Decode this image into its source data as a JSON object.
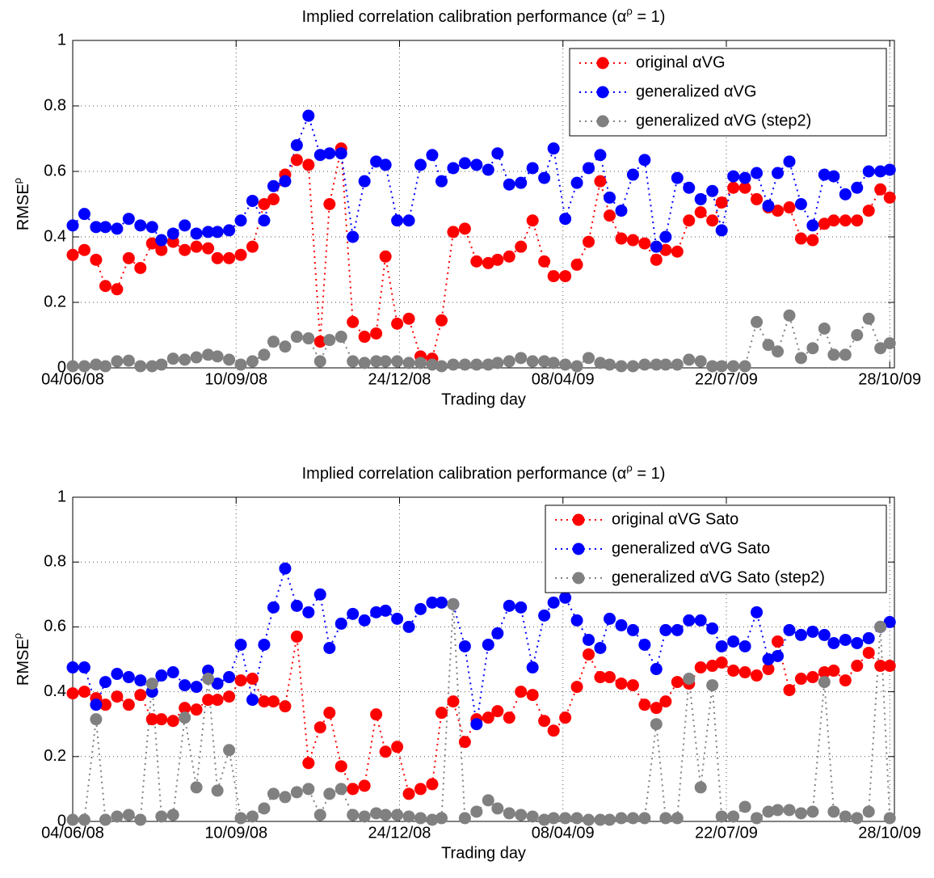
{
  "chart_data": [
    {
      "type": "line",
      "title": [
        "Implied correlation calibration performance (α",
        "ρ",
        " = 1)"
      ],
      "xlabel": "Trading day",
      "ylabel": [
        "RMSE",
        "ρ"
      ],
      "xlim": [
        0,
        352
      ],
      "ylim": [
        0,
        1
      ],
      "xticks": [
        {
          "value": 0,
          "label": "04/06/08"
        },
        {
          "value": 70,
          "label": "10/09/08"
        },
        {
          "value": 140,
          "label": "24/12/08"
        },
        {
          "value": 210,
          "label": "08/04/09"
        },
        {
          "value": 280,
          "label": "22/07/09"
        },
        {
          "value": 350,
          "label": "28/10/09"
        }
      ],
      "yticks": [
        0,
        0.2,
        0.4,
        0.6,
        0.8,
        1
      ],
      "grid": true,
      "legend": "upper right",
      "x": [
        0,
        5,
        10,
        14,
        19,
        24,
        29,
        34,
        38,
        43,
        48,
        53,
        58,
        62,
        67,
        72,
        77,
        82,
        86,
        91,
        96,
        101,
        106,
        110,
        115,
        120,
        125,
        130,
        134,
        139,
        144,
        149,
        154,
        158,
        163,
        168,
        173,
        178,
        182,
        187,
        192,
        197,
        202,
        206,
        211,
        216,
        221,
        226,
        230,
        235,
        240,
        245,
        250,
        254,
        259,
        264,
        269,
        274,
        278,
        283,
        288,
        293,
        298,
        302,
        307,
        312,
        317,
        322,
        326,
        331,
        336,
        341,
        346,
        350
      ],
      "series": [
        {
          "name": "original αVG",
          "color": "#ff0000",
          "values": [
            0.345,
            0.36,
            0.33,
            0.25,
            0.24,
            0.335,
            0.305,
            0.38,
            0.36,
            0.385,
            0.36,
            0.37,
            0.365,
            0.335,
            0.335,
            0.345,
            0.37,
            0.5,
            0.515,
            0.59,
            0.635,
            0.62,
            0.08,
            0.5,
            0.67,
            0.14,
            0.095,
            0.105,
            0.34,
            0.135,
            0.15,
            0.035,
            0.028,
            0.145,
            0.415,
            0.425,
            0.325,
            0.32,
            0.33,
            0.34,
            0.37,
            0.45,
            0.325,
            0.28,
            0.28,
            0.315,
            0.385,
            0.57,
            0.465,
            0.395,
            0.39,
            0.38,
            0.33,
            0.36,
            0.355,
            0.45,
            0.475,
            0.45,
            0.505,
            0.55,
            0.55,
            0.515,
            0.49,
            0.48,
            0.49,
            0.395,
            0.39,
            0.44,
            0.45,
            0.45,
            0.45,
            0.48,
            0.545,
            0.52
          ]
        },
        {
          "name": "generalized αVG",
          "color": "#0000ff",
          "values": [
            0.435,
            0.47,
            0.43,
            0.43,
            0.425,
            0.455,
            0.435,
            0.43,
            0.39,
            0.41,
            0.435,
            0.41,
            0.415,
            0.415,
            0.42,
            0.45,
            0.51,
            0.45,
            0.555,
            0.57,
            0.68,
            0.77,
            0.65,
            0.655,
            0.655,
            0.4,
            0.57,
            0.63,
            0.62,
            0.45,
            0.45,
            0.62,
            0.65,
            0.57,
            0.61,
            0.625,
            0.62,
            0.605,
            0.655,
            0.56,
            0.565,
            0.61,
            0.58,
            0.67,
            0.455,
            0.565,
            0.61,
            0.65,
            0.52,
            0.48,
            0.59,
            0.635,
            0.37,
            0.4,
            0.58,
            0.55,
            0.515,
            0.54,
            0.42,
            0.585,
            0.58,
            0.595,
            0.495,
            0.595,
            0.63,
            0.5,
            0.435,
            0.59,
            0.585,
            0.53,
            0.55,
            0.6,
            0.6,
            0.605
          ]
        },
        {
          "name": "generalized αVG (step2)",
          "color": "#808080",
          "values": [
            0.005,
            0.005,
            0.01,
            0.005,
            0.02,
            0.022,
            0.005,
            0.005,
            0.01,
            0.028,
            0.025,
            0.032,
            0.04,
            0.035,
            0.025,
            0.01,
            0.02,
            0.04,
            0.08,
            0.065,
            0.095,
            0.09,
            0.02,
            0.085,
            0.095,
            0.02,
            0.015,
            0.02,
            0.02,
            0.02,
            0.015,
            0.015,
            0.01,
            0.005,
            0.01,
            0.01,
            0.01,
            0.01,
            0.015,
            0.02,
            0.03,
            0.02,
            0.02,
            0.015,
            0.01,
            0.005,
            0.03,
            0.015,
            0.01,
            0.005,
            0.005,
            0.01,
            0.01,
            0.01,
            0.01,
            0.025,
            0.02,
            0.005,
            0.005,
            0.005,
            0.005,
            0.14,
            0.07,
            0.05,
            0.16,
            0.03,
            0.06,
            0.12,
            0.04,
            0.04,
            0.1,
            0.15,
            0.06,
            0.075
          ]
        }
      ]
    },
    {
      "type": "line",
      "title": [
        "Implied correlation calibration performance (α",
        "ρ",
        " = 1)"
      ],
      "xlabel": "Trading day",
      "ylabel": [
        "RMSE",
        "ρ"
      ],
      "xlim": [
        0,
        352
      ],
      "ylim": [
        0,
        1
      ],
      "xticks": [
        {
          "value": 0,
          "label": "04/06/08"
        },
        {
          "value": 70,
          "label": "10/09/08"
        },
        {
          "value": 140,
          "label": "24/12/08"
        },
        {
          "value": 210,
          "label": "08/04/09"
        },
        {
          "value": 280,
          "label": "22/07/09"
        },
        {
          "value": 350,
          "label": "28/10/09"
        }
      ],
      "yticks": [
        0,
        0.2,
        0.4,
        0.6,
        0.8,
        1
      ],
      "grid": true,
      "legend": "upper right",
      "x": [
        0,
        5,
        10,
        14,
        19,
        24,
        29,
        34,
        38,
        43,
        48,
        53,
        58,
        62,
        67,
        72,
        77,
        82,
        86,
        91,
        96,
        101,
        106,
        110,
        115,
        120,
        125,
        130,
        134,
        139,
        144,
        149,
        154,
        158,
        163,
        168,
        173,
        178,
        182,
        187,
        192,
        197,
        202,
        206,
        211,
        216,
        221,
        226,
        230,
        235,
        240,
        245,
        250,
        254,
        259,
        264,
        269,
        274,
        278,
        283,
        288,
        293,
        298,
        302,
        307,
        312,
        317,
        322,
        326,
        331,
        336,
        341,
        346,
        350
      ],
      "series": [
        {
          "name": "original αVG Sato",
          "color": "#ff0000",
          "values": [
            0.395,
            0.4,
            0.38,
            0.36,
            0.385,
            0.36,
            0.39,
            0.315,
            0.315,
            0.31,
            0.35,
            0.345,
            0.375,
            0.375,
            0.385,
            0.435,
            0.44,
            0.37,
            0.37,
            0.355,
            0.57,
            0.18,
            0.29,
            0.335,
            0.17,
            0.1,
            0.11,
            0.33,
            0.215,
            0.23,
            0.085,
            0.1,
            0.115,
            0.335,
            0.37,
            0.245,
            0.315,
            0.32,
            0.34,
            0.32,
            0.4,
            0.39,
            0.31,
            0.28,
            0.32,
            0.415,
            0.515,
            0.445,
            0.445,
            0.425,
            0.42,
            0.36,
            0.35,
            0.37,
            0.43,
            0.425,
            0.475,
            0.48,
            0.49,
            0.465,
            0.46,
            0.45,
            0.47,
            0.555,
            0.405,
            0.44,
            0.445,
            0.46,
            0.465,
            0.435,
            0.48,
            0.52,
            0.48,
            0.48
          ]
        },
        {
          "name": "generalized αVG Sato",
          "color": "#0000ff",
          "values": [
            0.475,
            0.475,
            0.36,
            0.43,
            0.455,
            0.445,
            0.435,
            0.4,
            0.45,
            0.46,
            0.42,
            0.415,
            0.465,
            0.425,
            0.445,
            0.545,
            0.375,
            0.545,
            0.66,
            0.78,
            0.665,
            0.645,
            0.7,
            0.535,
            0.61,
            0.64,
            0.62,
            0.645,
            0.65,
            0.625,
            0.6,
            0.655,
            0.675,
            0.675,
            0.67,
            0.54,
            0.3,
            0.545,
            0.58,
            0.665,
            0.66,
            0.475,
            0.635,
            0.675,
            0.69,
            0.62,
            0.56,
            0.535,
            0.625,
            0.605,
            0.59,
            0.545,
            0.47,
            0.59,
            0.59,
            0.62,
            0.62,
            0.595,
            0.54,
            0.555,
            0.54,
            0.645,
            0.5,
            0.51,
            0.59,
            0.575,
            0.585,
            0.575,
            0.55,
            0.56,
            0.55,
            0.565,
            0.6,
            0.615
          ]
        },
        {
          "name": "generalized αVG Sato (step2)",
          "color": "#808080",
          "values": [
            0.005,
            0.005,
            0.315,
            0.005,
            0.015,
            0.02,
            0.005,
            0.425,
            0.015,
            0.02,
            0.32,
            0.105,
            0.44,
            0.095,
            0.22,
            0.01,
            0.015,
            0.04,
            0.085,
            0.075,
            0.09,
            0.1,
            0.02,
            0.085,
            0.1,
            0.02,
            0.015,
            0.025,
            0.02,
            0.02,
            0.015,
            0.01,
            0.005,
            0.01,
            0.67,
            0.01,
            0.03,
            0.065,
            0.04,
            0.025,
            0.02,
            0.015,
            0.005,
            0.01,
            0.01,
            0.01,
            0.005,
            0.005,
            0.005,
            0.01,
            0.01,
            0.01,
            0.3,
            0.01,
            0.01,
            0.44,
            0.105,
            0.42,
            0.015,
            0.015,
            0.045,
            0.01,
            0.03,
            0.035,
            0.035,
            0.025,
            0.03,
            0.43,
            0.03,
            0.015,
            0.01,
            0.03,
            0.6,
            0.01
          ]
        }
      ]
    }
  ]
}
